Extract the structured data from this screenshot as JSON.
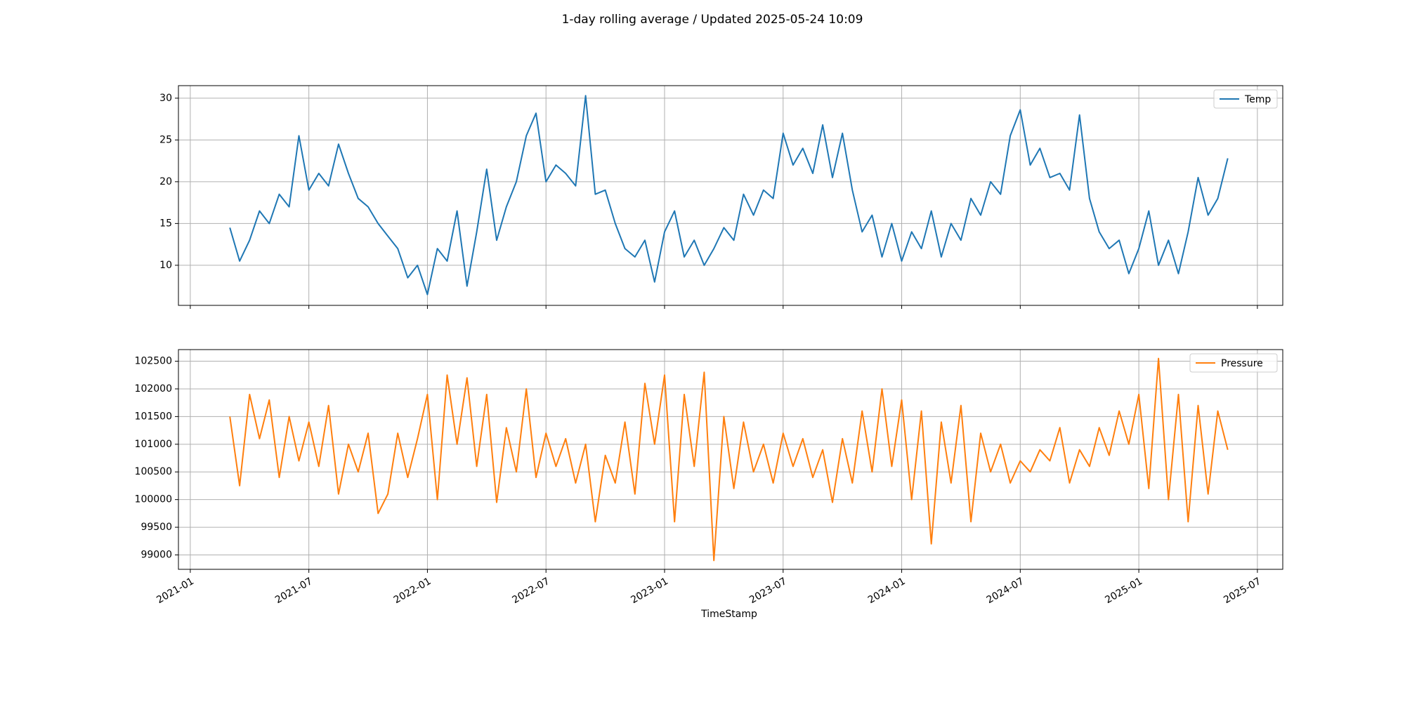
{
  "chart_data": [
    {
      "type": "line",
      "title": "1-day rolling average / Updated 2025-05-24 10:09",
      "x": [
        2021.167,
        2021.208,
        2021.25,
        2021.292,
        2021.333,
        2021.375,
        2021.417,
        2021.458,
        2021.5,
        2021.542,
        2021.583,
        2021.625,
        2021.667,
        2021.708,
        2021.75,
        2021.792,
        2021.833,
        2021.875,
        2021.917,
        2021.958,
        2022.0,
        2022.042,
        2022.083,
        2022.125,
        2022.167,
        2022.208,
        2022.25,
        2022.292,
        2022.333,
        2022.375,
        2022.417,
        2022.458,
        2022.5,
        2022.542,
        2022.583,
        2022.625,
        2022.667,
        2022.708,
        2022.75,
        2022.792,
        2022.833,
        2022.875,
        2022.917,
        2022.958,
        2023.0,
        2023.042,
        2023.083,
        2023.125,
        2023.167,
        2023.208,
        2023.25,
        2023.292,
        2023.333,
        2023.375,
        2023.417,
        2023.458,
        2023.5,
        2023.542,
        2023.583,
        2023.625,
        2023.667,
        2023.708,
        2023.75,
        2023.792,
        2023.833,
        2023.875,
        2023.917,
        2023.958,
        2024.0,
        2024.042,
        2024.083,
        2024.125,
        2024.167,
        2024.208,
        2024.25,
        2024.292,
        2024.333,
        2024.375,
        2024.417,
        2024.458,
        2024.5,
        2024.542,
        2024.583,
        2024.625,
        2024.667,
        2024.708,
        2024.75,
        2024.792,
        2024.833,
        2024.875,
        2024.917,
        2024.958,
        2025.0,
        2025.042,
        2025.083,
        2025.125,
        2025.167,
        2025.208,
        2025.25,
        2025.292,
        2025.333,
        2025.375
      ],
      "series": [
        {
          "name": "Temp",
          "color": "#1f77b4",
          "values": [
            14.5,
            10.5,
            13,
            16.5,
            15,
            18.5,
            17,
            25.5,
            19,
            21,
            19.5,
            24.5,
            21,
            18,
            17,
            15,
            13.5,
            12,
            8.5,
            10,
            6.5,
            12,
            10.5,
            16.5,
            7.5,
            14,
            21.5,
            13,
            17,
            20,
            25.5,
            28.2,
            20,
            22,
            21,
            19.5,
            30.3,
            18.5,
            19,
            15,
            12,
            11,
            13,
            8,
            14,
            16.5,
            11,
            13,
            10,
            12,
            14.5,
            13,
            18.5,
            16,
            19,
            18,
            25.8,
            22,
            24,
            21,
            26.8,
            20.5,
            25.8,
            19,
            14,
            16,
            11,
            15,
            10.5,
            14,
            12,
            16.5,
            11,
            15,
            13,
            18,
            16,
            20,
            18.5,
            25.5,
            28.6,
            22,
            24,
            20.5,
            21,
            19,
            28,
            18,
            14,
            12,
            13,
            9,
            12,
            16.5,
            10,
            13,
            9,
            14,
            20.5,
            16,
            18,
            22.8
          ]
        }
      ],
      "xlim": [
        2020.95,
        2025.607
      ],
      "xticks": [
        2021.0,
        2021.5,
        2022.0,
        2022.5,
        2023.0,
        2023.5,
        2024.0,
        2024.5,
        2025.0,
        2025.5
      ],
      "ylim": [
        5.2,
        31.5
      ],
      "yticks": [
        10,
        15,
        20,
        25,
        30
      ],
      "grid": true,
      "legend": "upper right"
    },
    {
      "type": "line",
      "xlabel": "TimeStamp",
      "x": [
        2021.167,
        2021.208,
        2021.25,
        2021.292,
        2021.333,
        2021.375,
        2021.417,
        2021.458,
        2021.5,
        2021.542,
        2021.583,
        2021.625,
        2021.667,
        2021.708,
        2021.75,
        2021.792,
        2021.833,
        2021.875,
        2021.917,
        2021.958,
        2022.0,
        2022.042,
        2022.083,
        2022.125,
        2022.167,
        2022.208,
        2022.25,
        2022.292,
        2022.333,
        2022.375,
        2022.417,
        2022.458,
        2022.5,
        2022.542,
        2022.583,
        2022.625,
        2022.667,
        2022.708,
        2022.75,
        2022.792,
        2022.833,
        2022.875,
        2022.917,
        2022.958,
        2023.0,
        2023.042,
        2023.083,
        2023.125,
        2023.167,
        2023.208,
        2023.25,
        2023.292,
        2023.333,
        2023.375,
        2023.417,
        2023.458,
        2023.5,
        2023.542,
        2023.583,
        2023.625,
        2023.667,
        2023.708,
        2023.75,
        2023.792,
        2023.833,
        2023.875,
        2023.917,
        2023.958,
        2024.0,
        2024.042,
        2024.083,
        2024.125,
        2024.167,
        2024.208,
        2024.25,
        2024.292,
        2024.333,
        2024.375,
        2024.417,
        2024.458,
        2024.5,
        2024.542,
        2024.583,
        2024.625,
        2024.667,
        2024.708,
        2024.75,
        2024.792,
        2024.833,
        2024.875,
        2024.917,
        2024.958,
        2025.0,
        2025.042,
        2025.083,
        2025.125,
        2025.167,
        2025.208,
        2025.25,
        2025.292,
        2025.333,
        2025.375
      ],
      "series": [
        {
          "name": "Pressure",
          "color": "#ff7f0e",
          "values": [
            101500,
            100250,
            101900,
            101100,
            101800,
            100400,
            101500,
            100700,
            101400,
            100600,
            101700,
            100100,
            101000,
            100500,
            101200,
            99750,
            100100,
            101200,
            100400,
            101100,
            101900,
            100000,
            102250,
            101000,
            102200,
            100600,
            101900,
            99950,
            101300,
            100500,
            102000,
            100400,
            101200,
            100600,
            101100,
            100300,
            101000,
            99600,
            100800,
            100300,
            101400,
            100100,
            102100,
            101000,
            102250,
            99600,
            101900,
            100600,
            102300,
            98900,
            101500,
            100200,
            101400,
            100500,
            101000,
            100300,
            101200,
            100600,
            101100,
            100400,
            100900,
            99950,
            101100,
            100300,
            101600,
            100500,
            102000,
            100600,
            101800,
            100000,
            101600,
            99200,
            101400,
            100300,
            101700,
            99600,
            101200,
            100500,
            101000,
            100300,
            100700,
            100500,
            100900,
            100700,
            101300,
            100300,
            100900,
            100600,
            101300,
            100800,
            101600,
            101000,
            101900,
            100200,
            102550,
            100000,
            101900,
            99600,
            101700,
            100100,
            101600,
            100900
          ]
        }
      ],
      "xlim": [
        2020.95,
        2025.607
      ],
      "xticks": [
        {
          "value": 2021.0,
          "label": "2021-01"
        },
        {
          "value": 2021.5,
          "label": "2021-07"
        },
        {
          "value": 2022.0,
          "label": "2022-01"
        },
        {
          "value": 2022.5,
          "label": "2022-07"
        },
        {
          "value": 2023.0,
          "label": "2023-01"
        },
        {
          "value": 2023.5,
          "label": "2023-07"
        },
        {
          "value": 2024.0,
          "label": "2024-01"
        },
        {
          "value": 2024.5,
          "label": "2024-07"
        },
        {
          "value": 2025.0,
          "label": "2025-01"
        },
        {
          "value": 2025.5,
          "label": "2025-07"
        }
      ],
      "ylim": [
        98740,
        102710
      ],
      "yticks": [
        99000,
        99500,
        100000,
        100500,
        101000,
        101500,
        102000,
        102500
      ],
      "grid": true,
      "legend": "upper right"
    }
  ]
}
